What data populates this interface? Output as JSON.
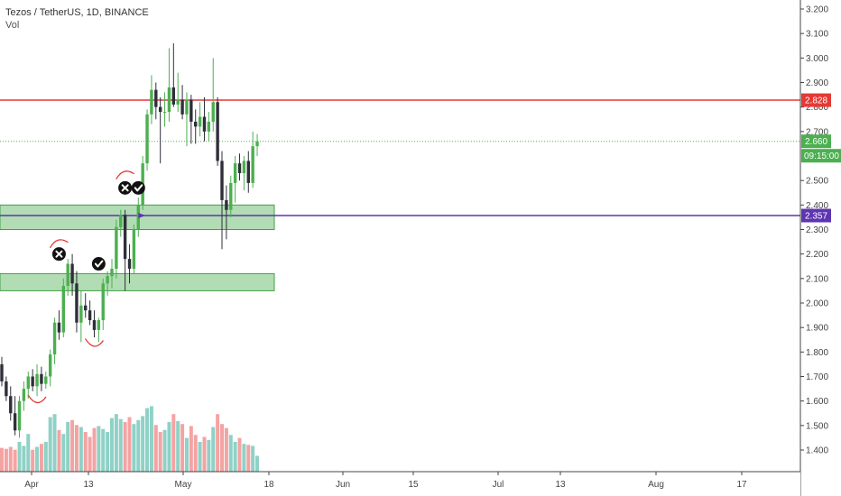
{
  "header": {
    "title": "Tezos / TetherUS, 1D, BINANCE",
    "vol_label": "Vol"
  },
  "colors": {
    "up": "#4caf50",
    "down": "#2f2f3a",
    "vol_up": "#8fd1c6",
    "vol_down": "#f4a3a3",
    "resistance": "#e53935",
    "support": "#5e35b1",
    "current": "#4caf50",
    "zone_fill": "#a5d6a7",
    "zone_stroke": "#43a047"
  },
  "chart_data": {
    "type": "candlestick",
    "title": "Tezos / TetherUS, 1D, BINANCE",
    "ylim": [
      1.3,
      3.23
    ],
    "y_ticks": [
      "3.200",
      "3.100",
      "3.000",
      "2.900",
      "2.800",
      "2.700",
      "2.500",
      "2.400",
      "2.300",
      "2.200",
      "2.100",
      "2.000",
      "1.900",
      "1.800",
      "1.700",
      "1.600",
      "1.500",
      "1.400"
    ],
    "x_ticks": [
      "Apr",
      "13",
      "May",
      "18",
      "Jun",
      "15",
      "Jul",
      "13",
      "Aug",
      "17"
    ],
    "candles": [
      {
        "date": "Mar 30",
        "o": 1.75,
        "h": 1.78,
        "l": 1.66,
        "c": 1.68
      },
      {
        "date": "Mar 31",
        "o": 1.68,
        "h": 1.7,
        "l": 1.6,
        "c": 1.62
      },
      {
        "date": "Apr 1",
        "o": 1.62,
        "h": 1.66,
        "l": 1.52,
        "c": 1.55
      },
      {
        "date": "Apr 2",
        "o": 1.55,
        "h": 1.62,
        "l": 1.46,
        "c": 1.48
      },
      {
        "date": "Apr 3",
        "o": 1.48,
        "h": 1.62,
        "l": 1.45,
        "c": 1.6
      },
      {
        "date": "Apr 4",
        "o": 1.6,
        "h": 1.68,
        "l": 1.56,
        "c": 1.65
      },
      {
        "date": "Apr 5",
        "o": 1.65,
        "h": 1.72,
        "l": 1.61,
        "c": 1.7
      },
      {
        "date": "Apr 6",
        "o": 1.7,
        "h": 1.73,
        "l": 1.64,
        "c": 1.66
      },
      {
        "date": "Apr 7",
        "o": 1.66,
        "h": 1.75,
        "l": 1.62,
        "c": 1.71
      },
      {
        "date": "Apr 8",
        "o": 1.71,
        "h": 1.74,
        "l": 1.64,
        "c": 1.67
      },
      {
        "date": "Apr 9",
        "o": 1.67,
        "h": 1.72,
        "l": 1.65,
        "c": 1.7
      },
      {
        "date": "Apr 10",
        "o": 1.7,
        "h": 1.81,
        "l": 1.66,
        "c": 1.79
      },
      {
        "date": "Apr 11",
        "o": 1.79,
        "h": 1.94,
        "l": 1.75,
        "c": 1.92
      },
      {
        "date": "Apr 12",
        "o": 1.92,
        "h": 1.97,
        "l": 1.85,
        "c": 1.88
      },
      {
        "date": "Apr 13",
        "o": 1.88,
        "h": 2.1,
        "l": 1.86,
        "c": 2.07
      },
      {
        "date": "Apr 14",
        "o": 2.07,
        "h": 2.18,
        "l": 2.03,
        "c": 2.16
      },
      {
        "date": "Apr 15",
        "o": 2.16,
        "h": 2.2,
        "l": 2.03,
        "c": 2.08
      },
      {
        "date": "Apr 16",
        "o": 2.08,
        "h": 2.13,
        "l": 1.88,
        "c": 1.92
      },
      {
        "date": "Apr 17",
        "o": 1.92,
        "h": 2.05,
        "l": 1.84,
        "c": 1.99
      },
      {
        "date": "Apr 18",
        "o": 1.99,
        "h": 2.04,
        "l": 1.94,
        "c": 1.97
      },
      {
        "date": "Apr 19",
        "o": 1.97,
        "h": 2.01,
        "l": 1.91,
        "c": 1.93
      },
      {
        "date": "Apr 20",
        "o": 1.93,
        "h": 1.97,
        "l": 1.86,
        "c": 1.89
      },
      {
        "date": "Apr 21",
        "o": 1.89,
        "h": 1.94,
        "l": 1.84,
        "c": 1.93
      },
      {
        "date": "Apr 22",
        "o": 1.93,
        "h": 2.1,
        "l": 1.89,
        "c": 2.08
      },
      {
        "date": "Apr 23",
        "o": 2.08,
        "h": 2.13,
        "l": 2.03,
        "c": 2.11
      },
      {
        "date": "Apr 24",
        "o": 2.11,
        "h": 2.18,
        "l": 2.06,
        "c": 2.14
      },
      {
        "date": "Apr 25",
        "o": 2.14,
        "h": 2.34,
        "l": 2.1,
        "c": 2.31
      },
      {
        "date": "Apr 26",
        "o": 2.31,
        "h": 2.38,
        "l": 2.27,
        "c": 2.36
      },
      {
        "date": "Apr 27",
        "o": 2.36,
        "h": 2.38,
        "l": 2.05,
        "c": 2.18
      },
      {
        "date": "Apr 28",
        "o": 2.18,
        "h": 2.24,
        "l": 2.08,
        "c": 2.14
      },
      {
        "date": "Apr 29",
        "o": 2.14,
        "h": 2.32,
        "l": 2.12,
        "c": 2.3
      },
      {
        "date": "Apr 30",
        "o": 2.3,
        "h": 2.43,
        "l": 2.27,
        "c": 2.4
      },
      {
        "date": "May 1",
        "o": 2.4,
        "h": 2.6,
        "l": 2.38,
        "c": 2.57
      },
      {
        "date": "May 2",
        "o": 2.57,
        "h": 2.79,
        "l": 2.54,
        "c": 2.77
      },
      {
        "date": "May 3",
        "o": 2.77,
        "h": 2.93,
        "l": 2.73,
        "c": 2.87
      },
      {
        "date": "May 4",
        "o": 2.87,
        "h": 2.9,
        "l": 2.75,
        "c": 2.8
      },
      {
        "date": "May 5",
        "o": 2.8,
        "h": 2.84,
        "l": 2.57,
        "c": 2.78
      },
      {
        "date": "May 6",
        "o": 2.78,
        "h": 2.86,
        "l": 2.72,
        "c": 2.78
      },
      {
        "date": "May 7",
        "o": 2.78,
        "h": 3.04,
        "l": 2.74,
        "c": 2.88
      },
      {
        "date": "May 8",
        "o": 2.88,
        "h": 3.06,
        "l": 2.8,
        "c": 2.81
      },
      {
        "date": "May 9",
        "o": 2.81,
        "h": 2.94,
        "l": 2.78,
        "c": 2.83
      },
      {
        "date": "May 10",
        "o": 2.83,
        "h": 2.89,
        "l": 2.75,
        "c": 2.77
      },
      {
        "date": "May 11",
        "o": 2.77,
        "h": 2.86,
        "l": 2.64,
        "c": 2.83
      },
      {
        "date": "May 12",
        "o": 2.83,
        "h": 2.85,
        "l": 2.65,
        "c": 2.74
      },
      {
        "date": "May 13",
        "o": 2.74,
        "h": 2.79,
        "l": 2.65,
        "c": 2.72
      },
      {
        "date": "May 14",
        "o": 2.72,
        "h": 2.82,
        "l": 2.68,
        "c": 2.76
      },
      {
        "date": "May 15",
        "o": 2.76,
        "h": 2.84,
        "l": 2.66,
        "c": 2.7
      },
      {
        "date": "May 16",
        "o": 2.7,
        "h": 2.78,
        "l": 2.66,
        "c": 2.74
      },
      {
        "date": "May 17",
        "o": 2.74,
        "h": 3.0,
        "l": 2.7,
        "c": 2.82
      },
      {
        "date": "May 18",
        "o": 2.82,
        "h": 2.84,
        "l": 2.56,
        "c": 2.58
      },
      {
        "date": "May 19",
        "o": 2.58,
        "h": 2.62,
        "l": 2.22,
        "c": 2.42
      },
      {
        "date": "May 20",
        "o": 2.42,
        "h": 2.48,
        "l": 2.26,
        "c": 2.38
      },
      {
        "date": "May 21",
        "o": 2.38,
        "h": 2.52,
        "l": 2.35,
        "c": 2.49
      },
      {
        "date": "May 22",
        "o": 2.49,
        "h": 2.6,
        "l": 2.41,
        "c": 2.57
      },
      {
        "date": "May 23",
        "o": 2.57,
        "h": 2.61,
        "l": 2.5,
        "c": 2.53
      },
      {
        "date": "May 24",
        "o": 2.53,
        "h": 2.6,
        "l": 2.46,
        "c": 2.58
      },
      {
        "date": "May 25",
        "o": 2.58,
        "h": 2.62,
        "l": 2.45,
        "c": 2.49
      },
      {
        "date": "May 26",
        "o": 2.49,
        "h": 2.7,
        "l": 2.47,
        "c": 2.64
      },
      {
        "date": "May 27",
        "o": 2.64,
        "h": 2.69,
        "l": 2.6,
        "c": 2.66
      }
    ],
    "volume": [
      0.24,
      0.23,
      0.25,
      0.22,
      0.3,
      0.26,
      0.38,
      0.22,
      0.25,
      0.28,
      0.3,
      0.55,
      0.58,
      0.42,
      0.38,
      0.5,
      0.52,
      0.47,
      0.45,
      0.4,
      0.35,
      0.44,
      0.46,
      0.43,
      0.4,
      0.54,
      0.58,
      0.53,
      0.5,
      0.55,
      0.48,
      0.52,
      0.56,
      0.64,
      0.66,
      0.47,
      0.4,
      0.42,
      0.5,
      0.58,
      0.51,
      0.48,
      0.34,
      0.46,
      0.37,
      0.3,
      0.35,
      0.32,
      0.45,
      0.58,
      0.48,
      0.44,
      0.37,
      0.3,
      0.34,
      0.28,
      0.27,
      0.26,
      0.16
    ],
    "horizontal_lines": [
      {
        "name": "resistance",
        "value": 2.828,
        "label": "2.828"
      },
      {
        "name": "current",
        "value": 2.66,
        "label": "2.660",
        "countdown": "09:15:00"
      },
      {
        "name": "support",
        "value": 2.357,
        "label": "2.357"
      }
    ],
    "zones": [
      {
        "name": "upper-demand-zone",
        "low": 2.3,
        "high": 2.4
      },
      {
        "name": "lower-demand-zone",
        "low": 2.05,
        "high": 2.12
      }
    ],
    "markers": [
      {
        "type": "cross",
        "date": "Apr 12",
        "value": 2.2
      },
      {
        "type": "check",
        "date": "Apr 21",
        "value": 2.16
      },
      {
        "type": "cross",
        "date": "Apr 27",
        "value": 2.47
      },
      {
        "type": "check",
        "date": "Apr 30",
        "value": 2.47
      }
    ]
  }
}
